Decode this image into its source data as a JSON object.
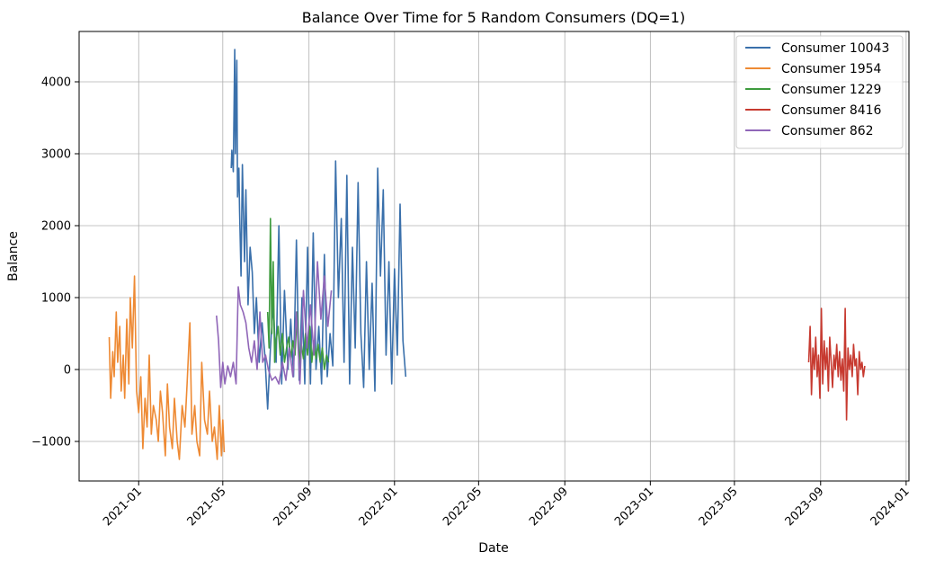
{
  "chart_data": {
    "type": "line",
    "title": "Balance Over Time for 5 Random Consumers (DQ=1)",
    "xlabel": "Date",
    "ylabel": "Balance",
    "xlim": [
      "2020-10-08",
      "2024-01-05"
    ],
    "ylim": [
      -1550,
      4700
    ],
    "x_ticks": [
      "2021-01",
      "2021-05",
      "2021-09",
      "2022-01",
      "2022-05",
      "2022-09",
      "2023-01",
      "2023-05",
      "2023-09",
      "2024-01"
    ],
    "y_ticks": [
      -1000,
      0,
      1000,
      2000,
      3000,
      4000
    ],
    "grid": true,
    "legend_position": "top-right",
    "series": [
      {
        "name": "Consumer 10043",
        "color": "#3a70ab",
        "x": [
          "2021-05-13",
          "2021-05-14",
          "2021-05-16",
          "2021-05-18",
          "2021-05-19",
          "2021-05-21",
          "2021-05-22",
          "2021-05-24",
          "2021-05-25",
          "2021-05-27",
          "2021-05-29",
          "2021-06-01",
          "2021-06-03",
          "2021-06-06",
          "2021-06-09",
          "2021-06-12",
          "2021-06-15",
          "2021-06-18",
          "2021-06-22",
          "2021-06-26",
          "2021-06-30",
          "2021-07-04",
          "2021-07-08",
          "2021-07-12",
          "2021-07-16",
          "2021-07-20",
          "2021-07-24",
          "2021-07-28",
          "2021-08-02",
          "2021-08-06",
          "2021-08-10",
          "2021-08-14",
          "2021-08-18",
          "2021-08-22",
          "2021-08-26",
          "2021-08-30",
          "2021-09-03",
          "2021-09-07",
          "2021-09-11",
          "2021-09-15",
          "2021-09-19",
          "2021-09-23",
          "2021-09-27",
          "2021-10-01",
          "2021-10-05",
          "2021-10-09",
          "2021-10-13",
          "2021-10-17",
          "2021-10-21",
          "2021-10-25",
          "2021-10-29",
          "2021-11-02",
          "2021-11-06",
          "2021-11-10",
          "2021-11-14",
          "2021-11-18",
          "2021-11-22",
          "2021-11-26",
          "2021-11-30",
          "2021-12-04",
          "2021-12-08",
          "2021-12-12",
          "2021-12-16",
          "2021-12-20",
          "2021-12-24",
          "2021-12-28",
          "2022-01-01",
          "2022-01-05",
          "2022-01-09",
          "2022-01-13",
          "2022-01-17"
        ],
        "values": [
          2800,
          3050,
          2750,
          4450,
          3000,
          4300,
          2400,
          2800,
          2200,
          1300,
          2850,
          1500,
          2500,
          900,
          1700,
          1350,
          500,
          1000,
          100,
          650,
          200,
          -550,
          300,
          900,
          100,
          2000,
          -200,
          1100,
          0,
          700,
          -100,
          1800,
          -150,
          1000,
          -200,
          1700,
          -200,
          1900,
          0,
          600,
          -200,
          1600,
          -100,
          500,
          50,
          2900,
          1000,
          2100,
          100,
          2700,
          -200,
          1700,
          300,
          2600,
          500,
          -250,
          1500,
          0,
          1200,
          -300,
          2800,
          1300,
          2500,
          200,
          1500,
          -200,
          1400,
          200,
          2300,
          400,
          -100
        ]
      },
      {
        "name": "Consumer 1954",
        "color": "#ee8a34",
        "x": [
          "2020-11-20",
          "2020-11-22",
          "2020-11-25",
          "2020-11-27",
          "2020-11-30",
          "2020-12-02",
          "2020-12-05",
          "2020-12-07",
          "2020-12-10",
          "2020-12-12",
          "2020-12-15",
          "2020-12-18",
          "2020-12-20",
          "2020-12-23",
          "2020-12-26",
          "2020-12-29",
          "2021-01-01",
          "2021-01-04",
          "2021-01-07",
          "2021-01-10",
          "2021-01-13",
          "2021-01-16",
          "2021-01-19",
          "2021-01-22",
          "2021-01-26",
          "2021-01-29",
          "2021-02-01",
          "2021-02-04",
          "2021-02-08",
          "2021-02-11",
          "2021-02-14",
          "2021-02-18",
          "2021-02-21",
          "2021-02-25",
          "2021-02-28",
          "2021-03-04",
          "2021-03-08",
          "2021-03-11",
          "2021-03-15",
          "2021-03-18",
          "2021-03-22",
          "2021-03-25",
          "2021-03-29",
          "2021-04-01",
          "2021-04-05",
          "2021-04-09",
          "2021-04-12",
          "2021-04-16",
          "2021-04-19",
          "2021-04-23",
          "2021-04-26",
          "2021-04-29",
          "2021-05-01",
          "2021-05-03"
        ],
        "values": [
          450,
          -400,
          250,
          -100,
          800,
          100,
          600,
          -300,
          200,
          -400,
          700,
          -200,
          1000,
          300,
          1300,
          -300,
          -600,
          -100,
          -1100,
          -400,
          -800,
          200,
          -900,
          -500,
          -700,
          -1000,
          -300,
          -600,
          -1200,
          -200,
          -800,
          -1100,
          -400,
          -1000,
          -1250,
          -500,
          -800,
          -200,
          650,
          -900,
          -500,
          -1000,
          -1200,
          100,
          -700,
          -900,
          -300,
          -1000,
          -800,
          -1250,
          -500,
          -1200,
          -700,
          -1150
        ]
      },
      {
        "name": "Consumer 1229",
        "color": "#3e9b3e",
        "x": [
          "2021-07-04",
          "2021-07-06",
          "2021-07-08",
          "2021-07-10",
          "2021-07-12",
          "2021-07-14",
          "2021-07-16",
          "2021-07-19",
          "2021-07-22",
          "2021-07-25",
          "2021-07-28",
          "2021-07-31",
          "2021-08-03",
          "2021-08-06",
          "2021-08-09",
          "2021-08-12",
          "2021-08-15",
          "2021-08-18",
          "2021-08-21",
          "2021-08-24",
          "2021-08-27",
          "2021-08-30",
          "2021-09-02",
          "2021-09-05",
          "2021-09-08",
          "2021-09-11",
          "2021-09-14",
          "2021-09-17",
          "2021-09-20",
          "2021-09-23",
          "2021-09-26",
          "2021-09-29"
        ],
        "values": [
          800,
          300,
          2100,
          500,
          1500,
          100,
          400,
          600,
          200,
          500,
          100,
          300,
          450,
          150,
          400,
          200,
          800,
          100,
          350,
          150,
          500,
          200,
          600,
          100,
          400,
          150,
          350,
          100,
          300,
          0,
          200,
          100
        ]
      },
      {
        "name": "Consumer 8416",
        "color": "#c73a30",
        "x": [
          "2023-08-15",
          "2023-08-17",
          "2023-08-19",
          "2023-08-21",
          "2023-08-23",
          "2023-08-25",
          "2023-08-27",
          "2023-08-29",
          "2023-08-31",
          "2023-09-02",
          "2023-09-04",
          "2023-09-06",
          "2023-09-08",
          "2023-09-10",
          "2023-09-12",
          "2023-09-14",
          "2023-09-16",
          "2023-09-18",
          "2023-09-20",
          "2023-09-22",
          "2023-09-24",
          "2023-09-26",
          "2023-09-28",
          "2023-09-30",
          "2023-10-02",
          "2023-10-04",
          "2023-10-06",
          "2023-10-08",
          "2023-10-10",
          "2023-10-12",
          "2023-10-14",
          "2023-10-16",
          "2023-10-18",
          "2023-10-20",
          "2023-10-22",
          "2023-10-24",
          "2023-10-26",
          "2023-10-28",
          "2023-10-30",
          "2023-11-01",
          "2023-11-03"
        ],
        "values": [
          100,
          600,
          -350,
          300,
          0,
          450,
          -100,
          200,
          -400,
          850,
          -200,
          400,
          0,
          300,
          -300,
          450,
          100,
          -250,
          200,
          0,
          350,
          -100,
          250,
          -150,
          150,
          -300,
          850,
          -700,
          300,
          0,
          200,
          -100,
          350,
          50,
          150,
          -350,
          250,
          0,
          100,
          -100,
          50
        ]
      },
      {
        "name": "Consumer 862",
        "color": "#9066b8",
        "x": [
          "2021-04-22",
          "2021-04-25",
          "2021-04-28",
          "2021-05-01",
          "2021-05-04",
          "2021-05-08",
          "2021-05-12",
          "2021-05-16",
          "2021-05-20",
          "2021-05-23",
          "2021-05-26",
          "2021-05-30",
          "2021-06-03",
          "2021-06-07",
          "2021-06-11",
          "2021-06-15",
          "2021-06-19",
          "2021-06-23",
          "2021-06-27",
          "2021-07-01",
          "2021-07-05",
          "2021-07-10",
          "2021-07-15",
          "2021-07-20",
          "2021-07-25",
          "2021-07-30",
          "2021-08-04",
          "2021-08-09",
          "2021-08-14",
          "2021-08-19",
          "2021-08-24",
          "2021-08-29",
          "2021-09-03",
          "2021-09-08",
          "2021-09-13",
          "2021-09-18",
          "2021-09-23",
          "2021-09-28",
          "2021-10-03"
        ],
        "values": [
          750,
          400,
          -250,
          100,
          -200,
          50,
          -100,
          100,
          -200,
          1150,
          900,
          800,
          650,
          300,
          100,
          400,
          0,
          800,
          100,
          200,
          0,
          -150,
          -100,
          -200,
          100,
          -150,
          300,
          -100,
          800,
          -200,
          1100,
          300,
          900,
          200,
          1500,
          700,
          1300,
          600,
          1100
        ]
      }
    ]
  }
}
